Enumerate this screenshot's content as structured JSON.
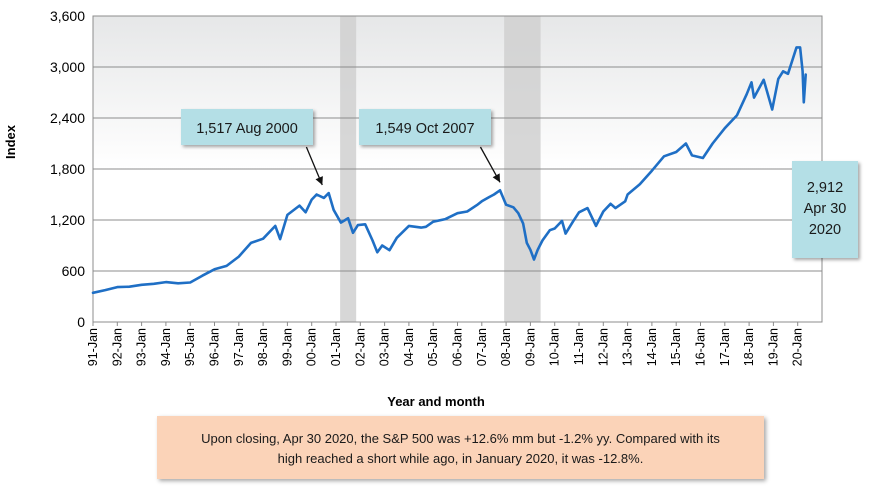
{
  "chart_data": {
    "type": "line",
    "title": "",
    "xlabel": "Year and month",
    "ylabel": "Index",
    "ylim": [
      0,
      3600
    ],
    "yticks": [
      0,
      600,
      1200,
      1800,
      2400,
      3000,
      3600
    ],
    "ytick_labels": [
      "0",
      "600",
      "1,200",
      "1,800",
      "2,400",
      "3,000",
      "3,600"
    ],
    "xlim": [
      1991.0,
      2021.0
    ],
    "xtick_labels": [
      "91-Jan",
      "92-Jan",
      "93-Jan",
      "94-Jan",
      "95-Jan",
      "96-Jan",
      "97-Jan",
      "98-Jan",
      "99-Jan",
      "00-Jan",
      "01-Jan",
      "02-Jan",
      "03-Jan",
      "04-Jan",
      "05-Jan",
      "06-Jan",
      "07-Jan",
      "08-Jan",
      "09-Jan",
      "10-Jan",
      "11-Jan",
      "12-Jan",
      "13-Jan",
      "14-Jan",
      "15-Jan",
      "16-Jan",
      "17-Jan",
      "18-Jan",
      "19-Jan",
      "20-Jan"
    ],
    "grid": true,
    "recession_shading": [
      [
        2001.17,
        2001.83
      ],
      [
        2007.92,
        2009.42
      ]
    ],
    "series": [
      {
        "color": "#1f6fc5",
        "points": [
          [
            1991.0,
            343
          ],
          [
            1991.5,
            375
          ],
          [
            1992.0,
            410
          ],
          [
            1992.5,
            415
          ],
          [
            1993.0,
            438
          ],
          [
            1993.5,
            450
          ],
          [
            1994.0,
            470
          ],
          [
            1994.5,
            455
          ],
          [
            1995.0,
            465
          ],
          [
            1995.5,
            545
          ],
          [
            1996.0,
            620
          ],
          [
            1996.5,
            660
          ],
          [
            1997.0,
            770
          ],
          [
            1997.5,
            930
          ],
          [
            1998.0,
            980
          ],
          [
            1998.5,
            1130
          ],
          [
            1998.7,
            975
          ],
          [
            1999.0,
            1260
          ],
          [
            1999.5,
            1370
          ],
          [
            1999.75,
            1290
          ],
          [
            2000.0,
            1440
          ],
          [
            2000.2,
            1500
          ],
          [
            2000.5,
            1460
          ],
          [
            2000.7,
            1517
          ],
          [
            2000.9,
            1320
          ],
          [
            2001.2,
            1170
          ],
          [
            2001.5,
            1220
          ],
          [
            2001.7,
            1050
          ],
          [
            2001.9,
            1140
          ],
          [
            2002.2,
            1150
          ],
          [
            2002.5,
            960
          ],
          [
            2002.7,
            820
          ],
          [
            2002.9,
            900
          ],
          [
            2003.2,
            845
          ],
          [
            2003.5,
            990
          ],
          [
            2004.0,
            1130
          ],
          [
            2004.5,
            1110
          ],
          [
            2004.7,
            1120
          ],
          [
            2005.0,
            1180
          ],
          [
            2005.5,
            1210
          ],
          [
            2006.0,
            1280
          ],
          [
            2006.4,
            1300
          ],
          [
            2006.8,
            1375
          ],
          [
            2007.0,
            1420
          ],
          [
            2007.3,
            1470
          ],
          [
            2007.5,
            1500
          ],
          [
            2007.75,
            1549
          ],
          [
            2008.0,
            1380
          ],
          [
            2008.3,
            1350
          ],
          [
            2008.5,
            1280
          ],
          [
            2008.7,
            1160
          ],
          [
            2008.85,
            930
          ],
          [
            2009.0,
            850
          ],
          [
            2009.15,
            735
          ],
          [
            2009.3,
            850
          ],
          [
            2009.5,
            960
          ],
          [
            2009.8,
            1080
          ],
          [
            2010.0,
            1100
          ],
          [
            2010.3,
            1190
          ],
          [
            2010.45,
            1040
          ],
          [
            2010.75,
            1180
          ],
          [
            2011.0,
            1290
          ],
          [
            2011.35,
            1340
          ],
          [
            2011.7,
            1130
          ],
          [
            2012.0,
            1300
          ],
          [
            2012.3,
            1390
          ],
          [
            2012.5,
            1340
          ],
          [
            2012.9,
            1420
          ],
          [
            2013.0,
            1500
          ],
          [
            2013.5,
            1620
          ],
          [
            2014.0,
            1780
          ],
          [
            2014.5,
            1950
          ],
          [
            2015.0,
            2000
          ],
          [
            2015.4,
            2100
          ],
          [
            2015.65,
            1960
          ],
          [
            2016.1,
            1930
          ],
          [
            2016.5,
            2100
          ],
          [
            2017.0,
            2280
          ],
          [
            2017.5,
            2430
          ],
          [
            2017.9,
            2680
          ],
          [
            2018.1,
            2820
          ],
          [
            2018.2,
            2640
          ],
          [
            2018.6,
            2850
          ],
          [
            2018.95,
            2500
          ],
          [
            2019.2,
            2860
          ],
          [
            2019.4,
            2950
          ],
          [
            2019.6,
            2920
          ],
          [
            2019.95,
            3230
          ],
          [
            2020.1,
            3230
          ],
          [
            2020.2,
            2950
          ],
          [
            2020.25,
            2585
          ],
          [
            2020.33,
            2912
          ]
        ]
      }
    ],
    "annotations": [
      {
        "text": "1,517 Aug 2000",
        "x": 2000.6,
        "y": 1517
      },
      {
        "text": "1,549 Oct 2007",
        "x": 2007.75,
        "y": 1549
      }
    ],
    "end_label": [
      "2,912",
      "Apr 30",
      "2020"
    ]
  },
  "note": {
    "line1": "Upon closing, Apr 30 2020, the S&P 500 was +12.6% mm but -1.2% yy. Compared with its",
    "line2": "high reached a short while ago, in January 2020, it was  -12.8%."
  },
  "colors": {
    "line": "#1f6fc5",
    "callout_bg": "#b4dfe6",
    "note_bg": "#fbd3b8",
    "recession": "#d0d0d0"
  }
}
